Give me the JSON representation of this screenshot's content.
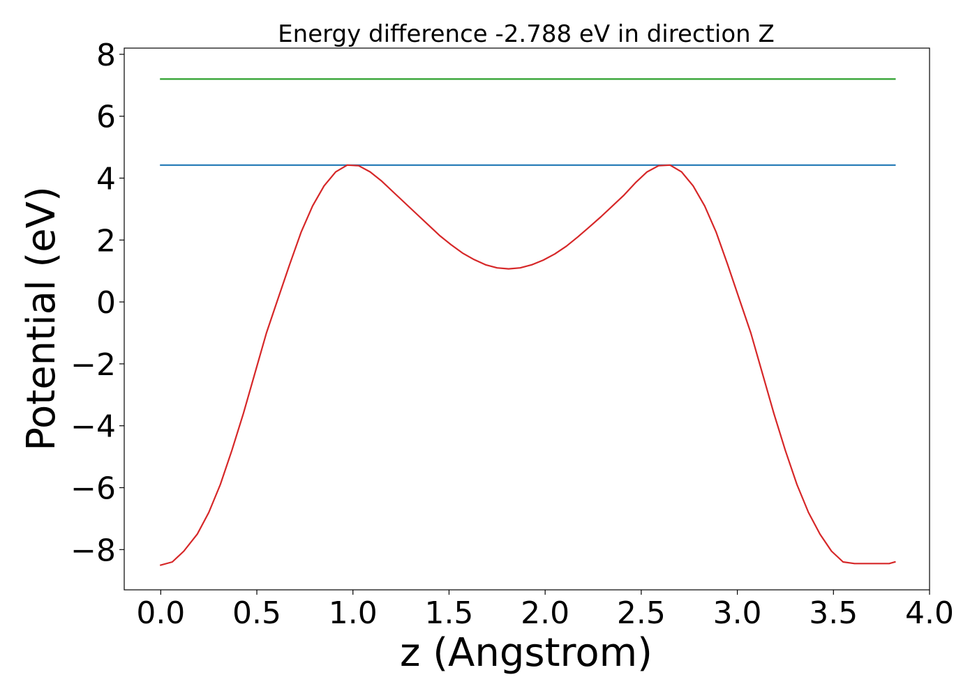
{
  "chart_data": {
    "type": "line",
    "title": "Energy difference -2.788 eV in direction Z",
    "xlabel": "z (Angstrom)",
    "ylabel": "Potential (eV)",
    "xlim": [
      -0.19,
      4.0
    ],
    "ylim": [
      -9.3,
      8.2
    ],
    "xticks": [
      0.0,
      0.5,
      1.0,
      1.5,
      2.0,
      2.5,
      3.0,
      3.5,
      4.0
    ],
    "xtick_labels": [
      "0.0",
      "0.5",
      "1.0",
      "1.5",
      "2.0",
      "2.5",
      "3.0",
      "3.5",
      "4.0"
    ],
    "yticks": [
      -8,
      -6,
      -4,
      -2,
      0,
      2,
      4,
      6,
      8
    ],
    "ytick_labels": [
      "−8",
      "−6",
      "−4",
      "−2",
      "0",
      "2",
      "4",
      "6",
      "8"
    ],
    "grid": false,
    "series": [
      {
        "color": "#2ca02c",
        "x": [
          0.0,
          3.82
        ],
        "y": [
          7.2,
          7.2
        ]
      },
      {
        "color": "#1f77b4",
        "x": [
          0.0,
          3.82
        ],
        "y": [
          4.42,
          4.42
        ]
      },
      {
        "color": "#d62728",
        "x": [
          0.0,
          0.06,
          0.12,
          0.19,
          0.25,
          0.31,
          0.37,
          0.43,
          0.49,
          0.55,
          0.61,
          0.67,
          0.73,
          0.79,
          0.85,
          0.91,
          0.97,
          1.03,
          1.09,
          1.15,
          1.21,
          1.27,
          1.33,
          1.39,
          1.45,
          1.51,
          1.57,
          1.63,
          1.69,
          1.75,
          1.81,
          1.87,
          1.93,
          1.99,
          2.05,
          2.11,
          2.17,
          2.23,
          2.29,
          2.35,
          2.41,
          2.47,
          2.53,
          2.59,
          2.65,
          2.71,
          2.77,
          2.83,
          2.89,
          2.95,
          3.01,
          3.07,
          3.13,
          3.19,
          3.25,
          3.31,
          3.37,
          3.43,
          3.49,
          3.55,
          3.61,
          3.67,
          3.73,
          3.79,
          3.82
        ],
        "y": [
          -8.5,
          -8.4,
          -8.05,
          -7.5,
          -6.8,
          -5.9,
          -4.8,
          -3.6,
          -2.3,
          -1.0,
          0.1,
          1.2,
          2.25,
          3.1,
          3.75,
          4.2,
          4.42,
          4.4,
          4.2,
          3.9,
          3.55,
          3.2,
          2.85,
          2.5,
          2.15,
          1.85,
          1.58,
          1.37,
          1.2,
          1.1,
          1.07,
          1.1,
          1.2,
          1.35,
          1.55,
          1.8,
          2.1,
          2.42,
          2.75,
          3.1,
          3.45,
          3.85,
          4.2,
          4.4,
          4.42,
          4.2,
          3.75,
          3.1,
          2.25,
          1.2,
          0.1,
          -1.0,
          -2.3,
          -3.6,
          -4.8,
          -5.9,
          -6.8,
          -7.5,
          -8.05,
          -8.4,
          -8.45,
          -8.45,
          -8.45,
          -8.45,
          -8.4
        ]
      }
    ]
  }
}
